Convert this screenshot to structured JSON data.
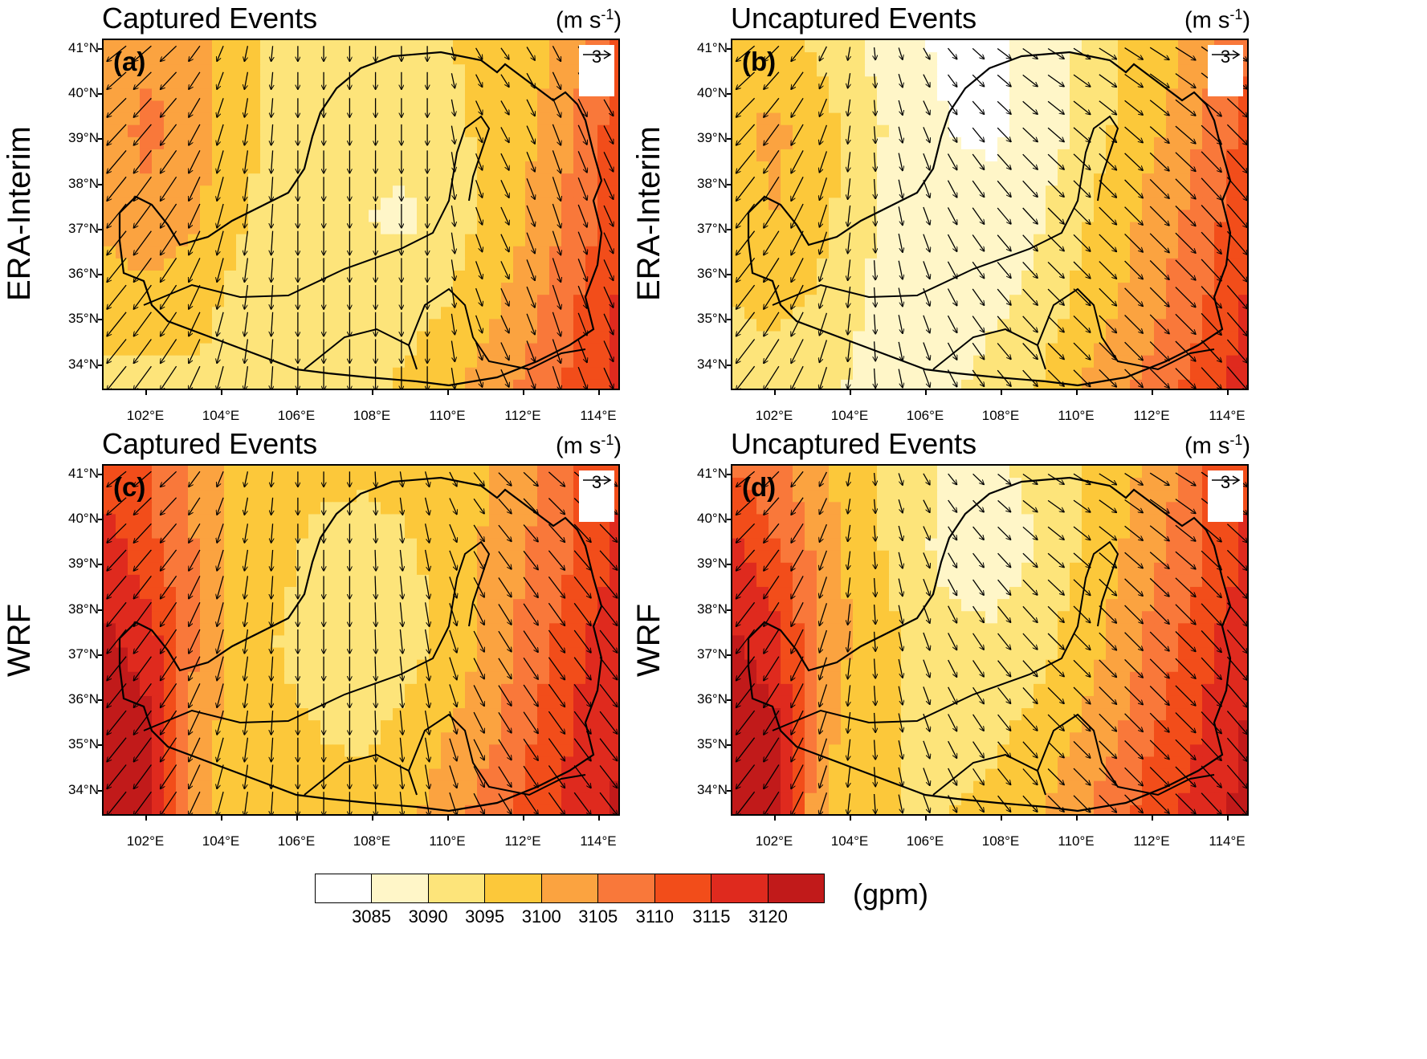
{
  "panels": [
    {
      "id": "a",
      "title": "Captured Events",
      "label": "(a)",
      "row_label": "ERA-Interim",
      "unit_base": "(m s",
      "unit_exp": "-1",
      "unit_close": ")",
      "ref_vector": "3",
      "field": [
        [
          3102,
          3104,
          3103,
          3097,
          3094,
          3093,
          3093,
          3094,
          3095,
          3096,
          3098,
          3103,
          3112
        ],
        [
          3103,
          3106,
          3104,
          3097,
          3094,
          3092,
          3092,
          3092,
          3094,
          3096,
          3100,
          3106,
          3113
        ],
        [
          3101,
          3104,
          3101,
          3096,
          3093,
          3092,
          3090,
          3089,
          3093,
          3096,
          3101,
          3107,
          3114
        ],
        [
          3097,
          3098,
          3097,
          3094,
          3093,
          3092,
          3092,
          3093,
          3095,
          3099,
          3104,
          3110,
          3116
        ],
        [
          3094,
          3093,
          3094,
          3094,
          3093,
          3093,
          3094,
          3096,
          3099,
          3103,
          3107,
          3112,
          3116
        ]
      ],
      "winds": [
        [
          -25,
          30
        ],
        [
          -20,
          30
        ],
        [
          -5,
          30
        ],
        [
          0,
          30
        ],
        [
          0,
          30
        ],
        [
          0,
          30
        ],
        [
          10,
          20
        ],
        [
          10,
          30
        ],
        [
          12,
          25
        ]
      ],
      "domain_marks": [
        "0.5",
        "0.35",
        "0.2"
      ]
    },
    {
      "id": "b",
      "title": "Uncaptured Events",
      "label": "(b)",
      "row_label": "ERA-Interim",
      "unit_base": "(m s",
      "unit_exp": "-1",
      "unit_close": ")",
      "ref_vector": "3",
      "field": [
        [
          3096,
          3097,
          3094,
          3090,
          3086,
          3084,
          3084,
          3086,
          3090,
          3095,
          3098,
          3103,
          3110
        ],
        [
          3099,
          3101,
          3098,
          3092,
          3088,
          3085,
          3084,
          3086,
          3091,
          3096,
          3100,
          3106,
          3112
        ],
        [
          3098,
          3100,
          3097,
          3091,
          3088,
          3087,
          3087,
          3089,
          3094,
          3098,
          3103,
          3108,
          3114
        ],
        [
          3095,
          3097,
          3094,
          3090,
          3088,
          3088,
          3089,
          3091,
          3096,
          3100,
          3105,
          3110,
          3116
        ],
        [
          3092,
          3091,
          3091,
          3089,
          3088,
          3089,
          3092,
          3095,
          3100,
          3104,
          3108,
          3113,
          3118
        ]
      ],
      "winds": [
        [
          -25,
          30
        ],
        [
          -15,
          30
        ],
        [
          0,
          25
        ],
        [
          8,
          22
        ],
        [
          16,
          20
        ],
        [
          20,
          20
        ],
        [
          22,
          22
        ],
        [
          25,
          25
        ],
        [
          25,
          30
        ]
      ],
      "domain_marks": [
        "0.5",
        "0.35",
        "0.2"
      ]
    },
    {
      "id": "c",
      "title": "Captured Events",
      "label": "(c)",
      "row_label": "WRF",
      "unit_base": "(m s",
      "unit_exp": "-1",
      "unit_close": ")",
      "ref_vector": "3",
      "field": [
        [
          3112,
          3110,
          3104,
          3098,
          3097,
          3096,
          3096,
          3097,
          3098,
          3100,
          3104,
          3110,
          3114
        ],
        [
          3118,
          3112,
          3106,
          3099,
          3096,
          3094,
          3093,
          3094,
          3097,
          3101,
          3106,
          3110,
          3117
        ],
        [
          3121,
          3118,
          3107,
          3099,
          3095,
          3093,
          3092,
          3093,
          3096,
          3102,
          3108,
          3114,
          3119
        ],
        [
          3123,
          3121,
          3103,
          3098,
          3096,
          3095,
          3094,
          3096,
          3100,
          3104,
          3110,
          3116,
          3120
        ],
        [
          3123,
          3121,
          3103,
          3097,
          3097,
          3096,
          3097,
          3099,
          3103,
          3108,
          3113,
          3117,
          3121
        ]
      ],
      "winds": [
        [
          -25,
          30
        ],
        [
          -20,
          30
        ],
        [
          -5,
          30
        ],
        [
          0,
          30
        ],
        [
          0,
          30
        ],
        [
          5,
          30
        ],
        [
          15,
          25
        ],
        [
          20,
          28
        ],
        [
          22,
          28
        ]
      ],
      "domain_marks": [
        "0.5",
        "0.35",
        "0.2"
      ]
    },
    {
      "id": "d",
      "title": "Uncaptured Events",
      "label": "(d)",
      "row_label": "WRF",
      "unit_base": "(m s",
      "unit_exp": "-1",
      "unit_close": ")",
      "ref_vector": "3",
      "field": [
        [
          3110,
          3106,
          3101,
          3096,
          3092,
          3089,
          3089,
          3091,
          3094,
          3098,
          3103,
          3110,
          3114
        ],
        [
          3117,
          3111,
          3104,
          3097,
          3093,
          3088,
          3087,
          3090,
          3095,
          3100,
          3105,
          3110,
          3117
        ],
        [
          3121,
          3117,
          3105,
          3098,
          3095,
          3092,
          3091,
          3093,
          3097,
          3102,
          3108,
          3114,
          3119
        ],
        [
          3123,
          3121,
          3102,
          3097,
          3095,
          3094,
          3094,
          3096,
          3100,
          3105,
          3111,
          3116,
          3121
        ],
        [
          3123,
          3121,
          3101,
          3096,
          3095,
          3095,
          3096,
          3099,
          3104,
          3109,
          3114,
          3118,
          3122
        ]
      ],
      "winds": [
        [
          -25,
          30
        ],
        [
          -15,
          30
        ],
        [
          0,
          25
        ],
        [
          8,
          22
        ],
        [
          15,
          20
        ],
        [
          20,
          20
        ],
        [
          22,
          22
        ],
        [
          25,
          25
        ],
        [
          25,
          30
        ]
      ],
      "domain_marks": [
        "0.5",
        "0.35",
        "0.2"
      ]
    }
  ],
  "lat_ticks": [
    "41°N",
    "40°N",
    "39°N",
    "38°N",
    "37°N",
    "36°N",
    "35°N",
    "34°N"
  ],
  "lon_ticks": [
    "102°E",
    "104°E",
    "106°E",
    "108°E",
    "110°E",
    "112°E",
    "114°E"
  ],
  "colorbar": {
    "colors": [
      "#ffffff",
      "#fff6c8",
      "#fde47a",
      "#fcc83a",
      "#fba340",
      "#f9783a",
      "#f24d1a",
      "#df2a1e",
      "#c11a1a"
    ],
    "labels": [
      "3085",
      "3090",
      "3095",
      "3100",
      "3105",
      "3110",
      "3115",
      "3120"
    ],
    "unit": "(gpm)",
    "breaks": [
      3085,
      3090,
      3095,
      3100,
      3105,
      3110,
      3115,
      3120
    ]
  }
}
